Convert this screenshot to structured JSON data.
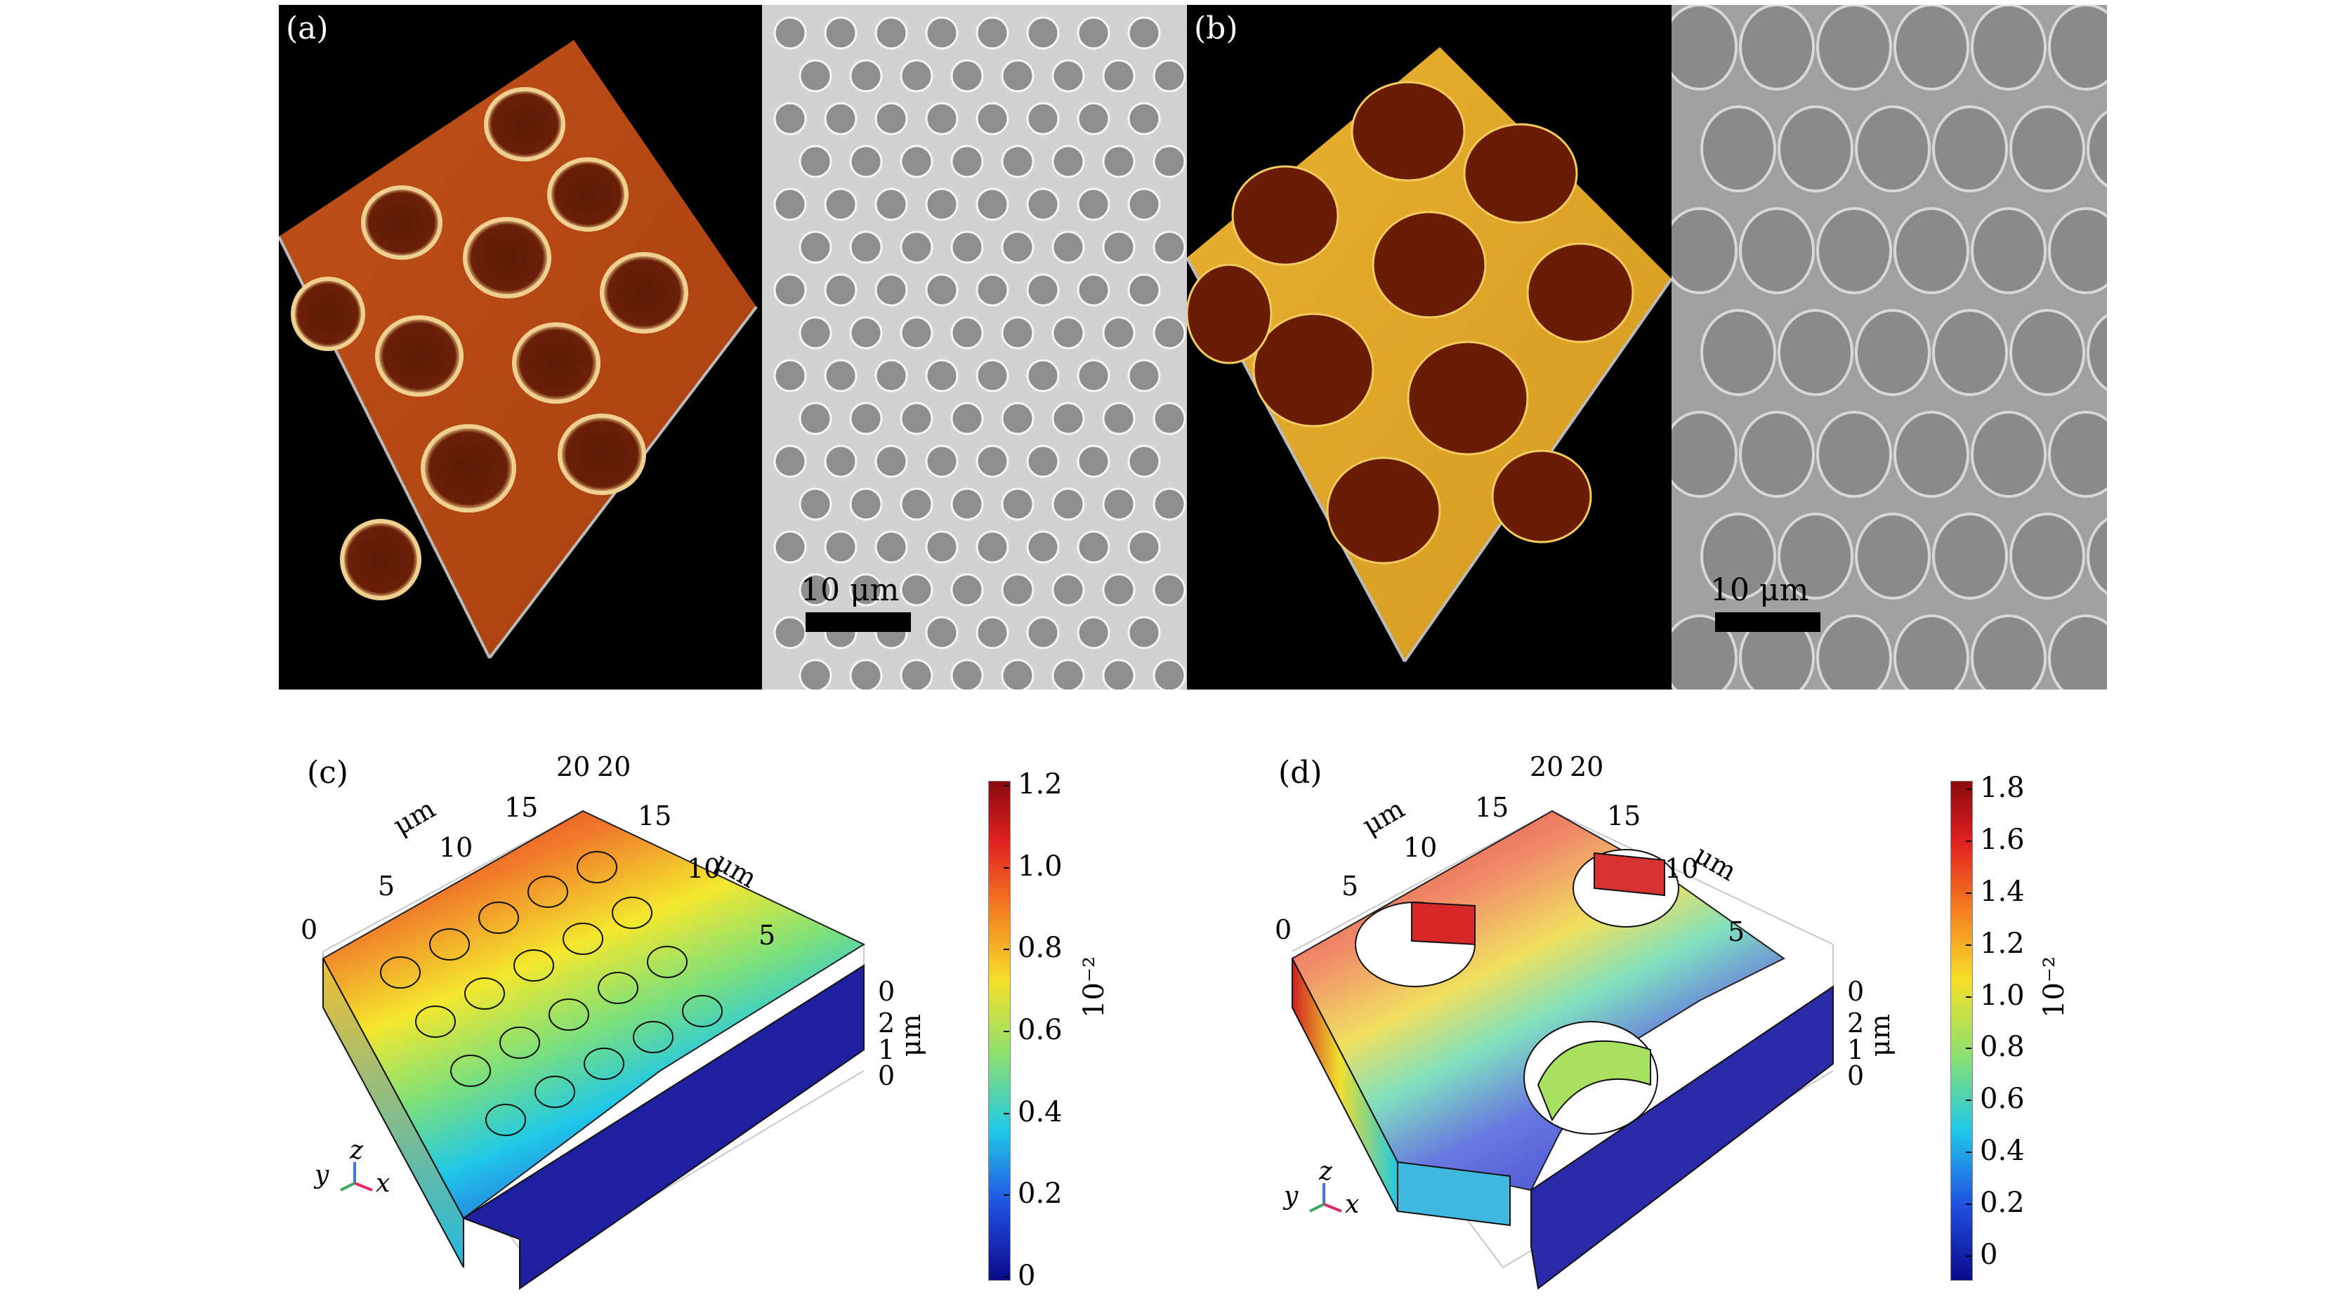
{
  "panels": {
    "a": {
      "label": "(a)",
      "scale_bar": "10 μm"
    },
    "b": {
      "label": "(b)",
      "scale_bar": "10 μm"
    },
    "c": {
      "label": "(c)",
      "axis_x_ticks": [
        "0",
        "5",
        "10",
        "15",
        "20"
      ],
      "axis_y_ticks": [
        "20",
        "15",
        "10",
        "5",
        "0"
      ],
      "axis_z_ticks": [
        "2",
        "1",
        "0"
      ],
      "axis_x_unit": "μm",
      "axis_y_unit": "μm",
      "axis_z_unit": "μm",
      "triad": {
        "x": "x",
        "y": "y",
        "z": "z"
      },
      "colorbar": {
        "ticks": [
          "1.2",
          "1.0",
          "0.8",
          "0.6",
          "0.4",
          "0.2",
          "0"
        ],
        "multiplier": "10⁻²"
      }
    },
    "d": {
      "label": "(d)",
      "axis_x_ticks": [
        "0",
        "5",
        "10",
        "15",
        "20"
      ],
      "axis_y_ticks": [
        "20",
        "15",
        "10",
        "5",
        "0"
      ],
      "axis_z_ticks": [
        "2",
        "1",
        "0"
      ],
      "axis_x_unit": "μm",
      "axis_y_unit": "μm",
      "axis_z_unit": "μm",
      "triad": {
        "x": "x",
        "y": "y",
        "z": "z"
      },
      "colorbar": {
        "ticks": [
          "1.8",
          "1.6",
          "1.4",
          "1.2",
          "1.0",
          "0.8",
          "0.6",
          "0.4",
          "0.2",
          "0"
        ],
        "multiplier": "10⁻²"
      }
    }
  }
}
